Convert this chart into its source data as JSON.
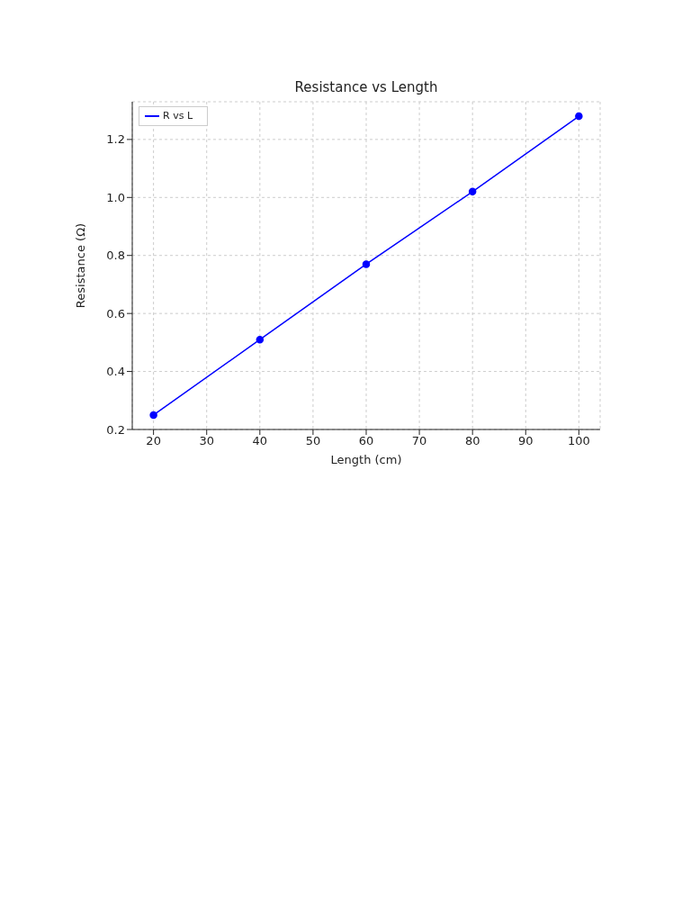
{
  "chart_data": {
    "type": "line",
    "title": "Resistance vs Length",
    "xlabel": "Length (cm)",
    "ylabel": "Resistance (Ω)",
    "x": [
      20,
      40,
      60,
      80,
      100
    ],
    "series": [
      {
        "name": "R vs L",
        "color": "#0000ff",
        "values": [
          0.25,
          0.51,
          0.77,
          1.02,
          1.28
        ]
      }
    ],
    "xlim": [
      16,
      104
    ],
    "xticks": [
      20,
      30,
      40,
      50,
      60,
      70,
      80,
      90,
      100
    ],
    "ylim": [
      0.2,
      1.33
    ],
    "yticks": [
      {
        "value": 0.2,
        "label": "0.2"
      },
      {
        "value": 0.4,
        "label": "0.4"
      },
      {
        "value": 0.6,
        "label": "0.6"
      },
      {
        "value": 0.8,
        "label": "0.8"
      },
      {
        "value": 1.0,
        "label": "1.0"
      },
      {
        "value": 1.2,
        "label": "1.2"
      }
    ],
    "grid": true,
    "legend": "top left",
    "marker": "circle",
    "line_style": "solid"
  }
}
